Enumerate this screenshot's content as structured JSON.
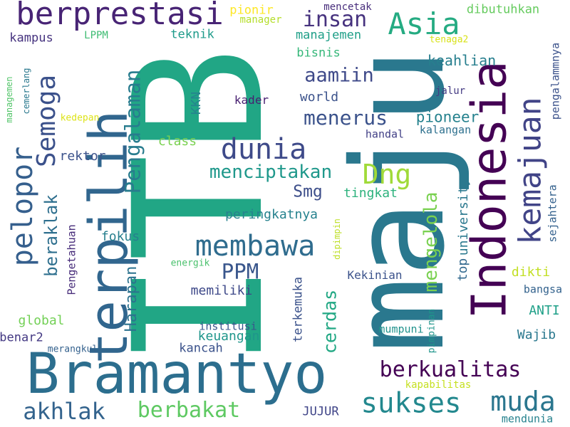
{
  "words": [
    {
      "text": "ITB",
      "color": "#21a685"
    },
    {
      "text": "maju",
      "color": "#2a788e"
    },
    {
      "text": "Bramantyo",
      "color": "#2c6e8e"
    },
    {
      "text": "terpilih",
      "color": "#31668e"
    },
    {
      "text": "Indonesia",
      "color": "#440154"
    },
    {
      "text": "berprestasi",
      "color": "#482475"
    },
    {
      "text": "kemajuan",
      "color": "#414487"
    },
    {
      "text": "Semoga",
      "color": "#3b518b"
    },
    {
      "text": "pelopor",
      "color": "#355f8d"
    },
    {
      "text": "dunia",
      "color": "#3e4a89"
    },
    {
      "text": "Asia",
      "color": "#25ab82"
    },
    {
      "text": "membawa",
      "color": "#2f6c8e"
    },
    {
      "text": "Dng",
      "color": "#a0da39"
    },
    {
      "text": "Pengalaman",
      "color": "#287c8e"
    },
    {
      "text": "sukses",
      "color": "#23888e"
    },
    {
      "text": "muda",
      "color": "#2a768e"
    },
    {
      "text": "berkualitas",
      "color": "#440154"
    },
    {
      "text": "akhlak",
      "color": "#33638d"
    },
    {
      "text": "berbakat",
      "color": "#5ec962"
    },
    {
      "text": "mengelola",
      "color": "#7ad151"
    },
    {
      "text": "menerus",
      "color": "#3b528b"
    },
    {
      "text": "insan",
      "color": "#46327e"
    },
    {
      "text": "menciptakan",
      "color": "#1f988b"
    },
    {
      "text": "PPM",
      "color": "#39568c"
    },
    {
      "text": "cerdas",
      "color": "#22a884"
    },
    {
      "text": "Harapan",
      "color": "#2c728e"
    },
    {
      "text": "beraklak",
      "color": "#2e6f8e"
    },
    {
      "text": "aamiin",
      "color": "#3e4989"
    },
    {
      "text": "pioneer",
      "color": "#26828e"
    },
    {
      "text": "Smg",
      "color": "#3d4e8a"
    },
    {
      "text": "top",
      "color": "#31688e"
    },
    {
      "text": "university",
      "color": "#2a788e"
    },
    {
      "text": "tingkat",
      "color": "#2db27d"
    },
    {
      "text": "keahlian",
      "color": "#277f8e"
    },
    {
      "text": "pengalammnya",
      "color": "#3b528b"
    },
    {
      "text": "sejahtera",
      "color": "#34618d"
    },
    {
      "text": "dibutuhkan",
      "color": "#65cb5e"
    },
    {
      "text": "manajemen",
      "color": "#1f9f88"
    },
    {
      "text": "teknik",
      "color": "#1e9b8a"
    },
    {
      "text": "pionir",
      "color": "#fde725"
    },
    {
      "text": "manager",
      "color": "#b5de2b"
    },
    {
      "text": "mencetak",
      "color": "#472d7b"
    },
    {
      "text": "kampus",
      "color": "#46337f"
    },
    {
      "text": "LPPM",
      "color": "#3fbc73"
    },
    {
      "text": "bisnis",
      "color": "#35b779"
    },
    {
      "text": "tenaga2",
      "color": "#d8e219"
    },
    {
      "text": "world",
      "color": "#3b528b"
    },
    {
      "text": "KKN",
      "color": "#25858e"
    },
    {
      "text": "kader",
      "color": "#482071"
    },
    {
      "text": "jalur",
      "color": "#443a83"
    },
    {
      "text": "managemen",
      "color": "#52c569"
    },
    {
      "text": "cemerlang",
      "color": "#2a788e"
    },
    {
      "text": "kedepan",
      "color": "#dde318"
    },
    {
      "text": "handal",
      "color": "#424086"
    },
    {
      "text": "kalangan",
      "color": "#2d708e"
    },
    {
      "text": "class",
      "color": "#7ad151"
    },
    {
      "text": "rektor",
      "color": "#3b528b"
    },
    {
      "text": "peringkatnya",
      "color": "#26828e"
    },
    {
      "text": "Pengetahuan",
      "color": "#472c7a"
    },
    {
      "text": "fokus",
      "color": "#277f8e"
    },
    {
      "text": "dipimpin",
      "color": "#bddf26"
    },
    {
      "text": "energik",
      "color": "#4ac16d"
    },
    {
      "text": "memiliki",
      "color": "#3e4989"
    },
    {
      "text": "Kekinian",
      "color": "#3b528b"
    },
    {
      "text": "dikti",
      "color": "#c2df23"
    },
    {
      "text": "bangsa",
      "color": "#33628d"
    },
    {
      "text": "global",
      "color": "#73d056"
    },
    {
      "text": "ANTI",
      "color": "#1fa088"
    },
    {
      "text": "institusi",
      "color": "#39568c"
    },
    {
      "text": "benar2",
      "color": "#443983"
    },
    {
      "text": "keuangan",
      "color": "#1f968b"
    },
    {
      "text": "terkemuka",
      "color": "#3b528b"
    },
    {
      "text": "mumpuni",
      "color": "#20928c"
    },
    {
      "text": "pimpinan",
      "color": "#1f958b"
    },
    {
      "text": "Wajib",
      "color": "#2a788e"
    },
    {
      "text": "kancah",
      "color": "#3b528b"
    },
    {
      "text": "merangkul",
      "color": "#34618d"
    },
    {
      "text": "kapabilitas",
      "color": "#c5e021"
    },
    {
      "text": "JUJUR",
      "color": "#404588"
    },
    {
      "text": "mendunia",
      "color": "#26828e"
    }
  ]
}
